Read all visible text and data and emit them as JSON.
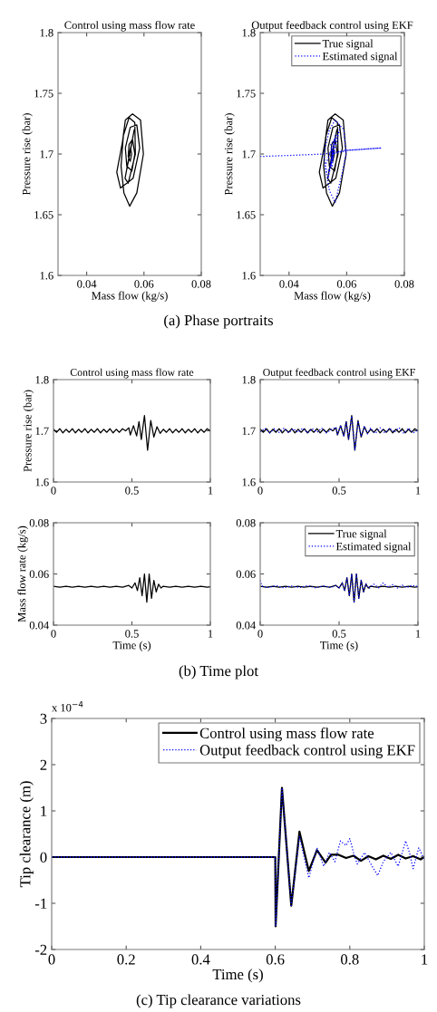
{
  "chart_data": [
    {
      "type": "line",
      "title": "Control using mass flow rate",
      "xlabel": "Mass flow (kg/s)",
      "ylabel": "Pressure rise (bar)",
      "xlim": [
        0.03,
        0.08
      ],
      "xticks": [
        0.04,
        0.06,
        0.08
      ],
      "ylim": [
        1.6,
        1.8
      ],
      "yticks": [
        1.6,
        1.65,
        1.7,
        1.75,
        1.8
      ],
      "grid": false,
      "legend": false,
      "annotations": [
        "(a) Phase portraits"
      ],
      "series": [
        {
          "color": "#000000",
          "line_style": "solid",
          "x": [
            0.055,
            0.0554,
            0.0546,
            0.0556,
            0.0544,
            0.056,
            0.054,
            0.0562,
            0.0538,
            0.0566,
            0.0534,
            0.0545,
            0.057,
            0.0568,
            0.0548,
            0.0528,
            0.052,
            0.053,
            0.055,
            0.0575,
            0.0598,
            0.0588,
            0.056,
            0.0535,
            0.0525,
            0.0505,
            0.0518,
            0.054,
            0.0562,
            0.0585,
            0.0575,
            0.0552,
            0.0535,
            0.054,
            0.0558,
            0.0568,
            0.056,
            0.0548,
            0.0545,
            0.0552,
            0.0557,
            0.0553,
            0.0549,
            0.0551
          ],
          "values": [
            1.7,
            1.704,
            1.696,
            1.708,
            1.692,
            1.712,
            1.688,
            1.715,
            1.685,
            1.72,
            1.68,
            1.676,
            1.7,
            1.726,
            1.73,
            1.715,
            1.69,
            1.668,
            1.657,
            1.668,
            1.7,
            1.728,
            1.733,
            1.728,
            1.71,
            1.685,
            1.672,
            1.676,
            1.68,
            1.705,
            1.724,
            1.722,
            1.705,
            1.69,
            1.686,
            1.7,
            1.712,
            1.708,
            1.698,
            1.694,
            1.7,
            1.705,
            1.701,
            1.699
          ]
        }
      ]
    },
    {
      "type": "line",
      "title": "Output feedback control using EKF",
      "xlabel": "Mass flow (kg/s)",
      "ylabel": "Pressure rise (bar)",
      "xlim": [
        0.03,
        0.08
      ],
      "xticks": [
        0.04,
        0.06,
        0.08
      ],
      "ylim": [
        1.6,
        1.8
      ],
      "yticks": [
        1.6,
        1.65,
        1.7,
        1.75,
        1.8
      ],
      "grid": false,
      "legend": "top right",
      "series": [
        {
          "name": "True signal",
          "color": "#000000",
          "line_style": "solid",
          "x": [
            0.055,
            0.0554,
            0.0546,
            0.0556,
            0.0544,
            0.056,
            0.054,
            0.0562,
            0.0538,
            0.0566,
            0.0534,
            0.0545,
            0.057,
            0.0568,
            0.0548,
            0.0528,
            0.052,
            0.053,
            0.055,
            0.0575,
            0.0598,
            0.0588,
            0.056,
            0.0535,
            0.0525,
            0.0505,
            0.0518,
            0.054,
            0.0562,
            0.0585,
            0.0575,
            0.0552,
            0.0535,
            0.054,
            0.0558,
            0.0568,
            0.056,
            0.0548,
            0.0545,
            0.0552,
            0.0557,
            0.0553,
            0.0549,
            0.0551
          ],
          "values": [
            1.7,
            1.704,
            1.696,
            1.708,
            1.692,
            1.712,
            1.688,
            1.715,
            1.685,
            1.72,
            1.68,
            1.676,
            1.7,
            1.726,
            1.73,
            1.715,
            1.69,
            1.668,
            1.657,
            1.668,
            1.7,
            1.728,
            1.733,
            1.728,
            1.71,
            1.685,
            1.672,
            1.676,
            1.68,
            1.705,
            1.724,
            1.722,
            1.705,
            1.69,
            1.686,
            1.7,
            1.712,
            1.708,
            1.698,
            1.694,
            1.7,
            1.705,
            1.701,
            1.699
          ]
        },
        {
          "name": "Estimated signal",
          "color": "#0000ff",
          "line_style": "dotted",
          "x": [
            0.03,
            0.042,
            0.052,
            0.06,
            0.072,
            0.06,
            0.055,
            0.0545,
            0.056,
            0.0535,
            0.0575,
            0.0525,
            0.054,
            0.056,
            0.0585,
            0.0598,
            0.059,
            0.056,
            0.054,
            0.052,
            0.053,
            0.055,
            0.0558,
            0.0545,
            0.0552,
            0.055
          ],
          "values": [
            1.698,
            1.699,
            1.7,
            1.703,
            1.705,
            1.703,
            1.7,
            1.69,
            1.715,
            1.68,
            1.72,
            1.69,
            1.67,
            1.66,
            1.685,
            1.7,
            1.72,
            1.728,
            1.72,
            1.7,
            1.685,
            1.69,
            1.712,
            1.708,
            1.695,
            1.702
          ]
        }
      ]
    },
    {
      "type": "line",
      "title": "Control using mass flow rate",
      "ylabel": "Pressure rise (bar)",
      "xlim": [
        0,
        1
      ],
      "xticks": [
        0,
        0.5,
        1
      ],
      "ylim": [
        1.6,
        1.8
      ],
      "yticks": [
        1.6,
        1.7,
        1.8
      ],
      "grid": false,
      "legend": false,
      "series": [
        {
          "color": "#000000",
          "line_style": "solid",
          "x": [
            0,
            0.02,
            0.04,
            0.06,
            0.08,
            0.1,
            0.12,
            0.14,
            0.16,
            0.18,
            0.2,
            0.22,
            0.24,
            0.26,
            0.28,
            0.3,
            0.32,
            0.34,
            0.36,
            0.38,
            0.4,
            0.42,
            0.44,
            0.46,
            0.48,
            0.49,
            0.51,
            0.53,
            0.545,
            0.56,
            0.58,
            0.6,
            0.62,
            0.64,
            0.66,
            0.68,
            0.7,
            0.72,
            0.74,
            0.76,
            0.78,
            0.8,
            0.82,
            0.84,
            0.86,
            0.88,
            0.9,
            0.92,
            0.94,
            0.96,
            0.98,
            1
          ],
          "values": [
            1.703,
            1.697,
            1.704,
            1.696,
            1.703,
            1.697,
            1.704,
            1.696,
            1.703,
            1.697,
            1.704,
            1.696,
            1.703,
            1.697,
            1.704,
            1.696,
            1.703,
            1.697,
            1.704,
            1.696,
            1.703,
            1.697,
            1.704,
            1.7,
            1.706,
            1.692,
            1.71,
            1.69,
            1.718,
            1.683,
            1.73,
            1.662,
            1.72,
            1.688,
            1.708,
            1.695,
            1.703,
            1.697,
            1.704,
            1.696,
            1.703,
            1.697,
            1.704,
            1.696,
            1.703,
            1.697,
            1.704,
            1.696,
            1.703,
            1.697,
            1.704,
            1.7
          ]
        }
      ]
    },
    {
      "type": "line",
      "title": "Output feedback control using EKF",
      "xlim": [
        0,
        1
      ],
      "xticks": [
        0,
        0.5,
        1
      ],
      "ylim": [
        1.6,
        1.8
      ],
      "yticks": [
        1.6,
        1.7,
        1.8
      ],
      "grid": false,
      "legend": false,
      "series": [
        {
          "color": "#000000",
          "line_style": "solid",
          "x": [
            0,
            0.02,
            0.04,
            0.06,
            0.08,
            0.1,
            0.12,
            0.14,
            0.16,
            0.18,
            0.2,
            0.22,
            0.24,
            0.26,
            0.28,
            0.3,
            0.32,
            0.34,
            0.36,
            0.38,
            0.4,
            0.42,
            0.44,
            0.46,
            0.48,
            0.49,
            0.51,
            0.53,
            0.545,
            0.56,
            0.58,
            0.6,
            0.62,
            0.64,
            0.66,
            0.68,
            0.7,
            0.72,
            0.74,
            0.76,
            0.78,
            0.8,
            0.82,
            0.84,
            0.86,
            0.88,
            0.9,
            0.92,
            0.94,
            0.96,
            0.98,
            1
          ],
          "values": [
            1.703,
            1.697,
            1.704,
            1.696,
            1.703,
            1.697,
            1.704,
            1.696,
            1.703,
            1.697,
            1.704,
            1.696,
            1.703,
            1.697,
            1.704,
            1.696,
            1.703,
            1.697,
            1.704,
            1.696,
            1.703,
            1.697,
            1.704,
            1.7,
            1.706,
            1.692,
            1.71,
            1.69,
            1.718,
            1.683,
            1.73,
            1.662,
            1.72,
            1.688,
            1.708,
            1.695,
            1.703,
            1.697,
            1.704,
            1.696,
            1.703,
            1.697,
            1.704,
            1.696,
            1.703,
            1.697,
            1.704,
            1.696,
            1.703,
            1.697,
            1.704,
            1.7
          ]
        },
        {
          "color": "#0000ff",
          "line_style": "dotted",
          "x": [
            0,
            0.03,
            0.06,
            0.09,
            0.12,
            0.15,
            0.18,
            0.21,
            0.24,
            0.27,
            0.3,
            0.33,
            0.36,
            0.39,
            0.42,
            0.45,
            0.48,
            0.49,
            0.51,
            0.53,
            0.545,
            0.56,
            0.58,
            0.6,
            0.62,
            0.64,
            0.66,
            0.68,
            0.7,
            0.73,
            0.76,
            0.79,
            0.82,
            0.85,
            0.88,
            0.91,
            0.94,
            0.97,
            1
          ],
          "values": [
            1.698,
            1.705,
            1.696,
            1.704,
            1.697,
            1.705,
            1.696,
            1.704,
            1.697,
            1.705,
            1.696,
            1.704,
            1.697,
            1.705,
            1.696,
            1.702,
            1.707,
            1.693,
            1.711,
            1.689,
            1.717,
            1.684,
            1.729,
            1.663,
            1.719,
            1.689,
            1.709,
            1.694,
            1.705,
            1.695,
            1.706,
            1.696,
            1.705,
            1.697,
            1.706,
            1.695,
            1.705,
            1.696,
            1.702
          ]
        }
      ]
    },
    {
      "type": "line",
      "xlabel": "Time (s)",
      "ylabel": "Mass flow rate (kg/s)",
      "xlim": [
        0,
        1
      ],
      "xticks": [
        0,
        0.5,
        1
      ],
      "ylim": [
        0.04,
        0.08
      ],
      "yticks": [
        0.04,
        0.06,
        0.08
      ],
      "grid": false,
      "legend": false,
      "annotations": [
        "(b) Time plot"
      ],
      "series": [
        {
          "color": "#000000",
          "line_style": "solid",
          "x": [
            0,
            0.04,
            0.08,
            0.12,
            0.16,
            0.2,
            0.24,
            0.28,
            0.32,
            0.36,
            0.4,
            0.44,
            0.48,
            0.5,
            0.52,
            0.535,
            0.55,
            0.565,
            0.58,
            0.595,
            0.61,
            0.625,
            0.64,
            0.655,
            0.67,
            0.685,
            0.7,
            0.74,
            0.78,
            0.82,
            0.86,
            0.9,
            0.94,
            0.98,
            1
          ],
          "values": [
            0.0552,
            0.0548,
            0.0552,
            0.0548,
            0.0552,
            0.0548,
            0.0552,
            0.0548,
            0.0552,
            0.0548,
            0.0552,
            0.0548,
            0.0555,
            0.0545,
            0.0565,
            0.0535,
            0.0585,
            0.0515,
            0.06,
            0.049,
            0.06,
            0.0505,
            0.0575,
            0.053,
            0.056,
            0.0545,
            0.0552,
            0.0548,
            0.0552,
            0.0548,
            0.0552,
            0.0548,
            0.0552,
            0.0548,
            0.055
          ]
        }
      ]
    },
    {
      "type": "line",
      "xlabel": "Time (s)",
      "xlim": [
        0,
        1
      ],
      "xticks": [
        0,
        0.5,
        1
      ],
      "ylim": [
        0.04,
        0.08
      ],
      "yticks": [
        0.04,
        0.06,
        0.08
      ],
      "grid": false,
      "legend": "top right",
      "series": [
        {
          "name": "True signal",
          "color": "#000000",
          "line_style": "solid",
          "x": [
            0,
            0.04,
            0.08,
            0.12,
            0.16,
            0.2,
            0.24,
            0.28,
            0.32,
            0.36,
            0.4,
            0.44,
            0.48,
            0.5,
            0.52,
            0.535,
            0.55,
            0.565,
            0.58,
            0.595,
            0.61,
            0.625,
            0.64,
            0.655,
            0.67,
            0.685,
            0.7,
            0.74,
            0.78,
            0.82,
            0.86,
            0.9,
            0.94,
            0.98,
            1
          ],
          "values": [
            0.0552,
            0.0548,
            0.0552,
            0.0548,
            0.0552,
            0.0548,
            0.0552,
            0.0548,
            0.0552,
            0.0548,
            0.0552,
            0.0548,
            0.0555,
            0.0545,
            0.0565,
            0.0535,
            0.0585,
            0.0515,
            0.06,
            0.049,
            0.06,
            0.0505,
            0.0575,
            0.053,
            0.056,
            0.0545,
            0.0552,
            0.0548,
            0.0552,
            0.0548,
            0.0552,
            0.0548,
            0.0552,
            0.0548,
            0.055
          ]
        },
        {
          "name": "Estimated signal",
          "color": "#0000ff",
          "line_style": "dotted",
          "x": [
            0,
            0.01,
            0.05,
            0.1,
            0.15,
            0.2,
            0.25,
            0.3,
            0.35,
            0.4,
            0.45,
            0.48,
            0.5,
            0.52,
            0.535,
            0.55,
            0.565,
            0.58,
            0.595,
            0.61,
            0.625,
            0.64,
            0.655,
            0.67,
            0.69,
            0.72,
            0.75,
            0.78,
            0.81,
            0.84,
            0.87,
            0.9,
            0.93,
            0.96,
            1
          ],
          "values": [
            0.0575,
            0.0553,
            0.0547,
            0.0554,
            0.0546,
            0.0553,
            0.0547,
            0.0554,
            0.0546,
            0.0553,
            0.0547,
            0.0556,
            0.0544,
            0.0566,
            0.0534,
            0.0586,
            0.0514,
            0.0599,
            0.0491,
            0.0599,
            0.0506,
            0.0576,
            0.0531,
            0.0562,
            0.0543,
            0.056,
            0.0546,
            0.0565,
            0.0548,
            0.0558,
            0.0545,
            0.0556,
            0.0547,
            0.0555,
            0.0551
          ]
        }
      ]
    },
    {
      "type": "line",
      "xlabel": "Time (s)",
      "ylabel": "Tip clearance (m)",
      "xlim": [
        0,
        1
      ],
      "xticks": [
        0,
        0.2,
        0.4,
        0.6,
        0.8,
        1
      ],
      "ylim": [
        -2,
        3
      ],
      "yticks": [
        -2,
        -1,
        0,
        1,
        2,
        3
      ],
      "grid": false,
      "legend": "top right",
      "annotations": [
        "x 10$^{−4}$",
        "(c) Tip clearance variations"
      ],
      "series": [
        {
          "name": "Control using mass flow rate",
          "color": "#000000",
          "line_style": "solid",
          "x": [
            0,
            0.6,
            0.601,
            0.618,
            0.643,
            0.665,
            0.69,
            0.712,
            0.735,
            0.75,
            0.77,
            0.79,
            0.81,
            0.83,
            0.85,
            0.87,
            0.89,
            0.91,
            0.93,
            0.95,
            0.97,
            0.99,
            1
          ],
          "values": [
            0,
            0,
            -1.5,
            1.5,
            -1.05,
            0.55,
            -0.3,
            0.15,
            -0.12,
            0.05,
            0.05,
            -0.02,
            0.03,
            -0.08,
            0.02,
            -0.05,
            0.03,
            -0.04,
            0.05,
            -0.03,
            0.02,
            -0.05,
            0
          ]
        },
        {
          "name": "Output feedback control using EKF",
          "color": "#0000ff",
          "line_style": "dotted",
          "x": [
            0,
            0.6,
            0.601,
            0.618,
            0.643,
            0.665,
            0.69,
            0.712,
            0.73,
            0.745,
            0.76,
            0.775,
            0.79,
            0.8,
            0.81,
            0.82,
            0.84,
            0.86,
            0.875,
            0.89,
            0.91,
            0.93,
            0.95,
            0.96,
            0.97,
            0.985,
            1
          ],
          "values": [
            0,
            0,
            -1.5,
            1.5,
            -1.05,
            0.45,
            -0.45,
            0.2,
            -0.2,
            0.1,
            -0.1,
            0.35,
            0.25,
            0.4,
            0.1,
            -0.15,
            0.1,
            -0.2,
            -0.4,
            -0.1,
            0.1,
            -0.2,
            0.35,
            0.1,
            -0.25,
            0.2,
            -0.05
          ]
        }
      ]
    }
  ]
}
